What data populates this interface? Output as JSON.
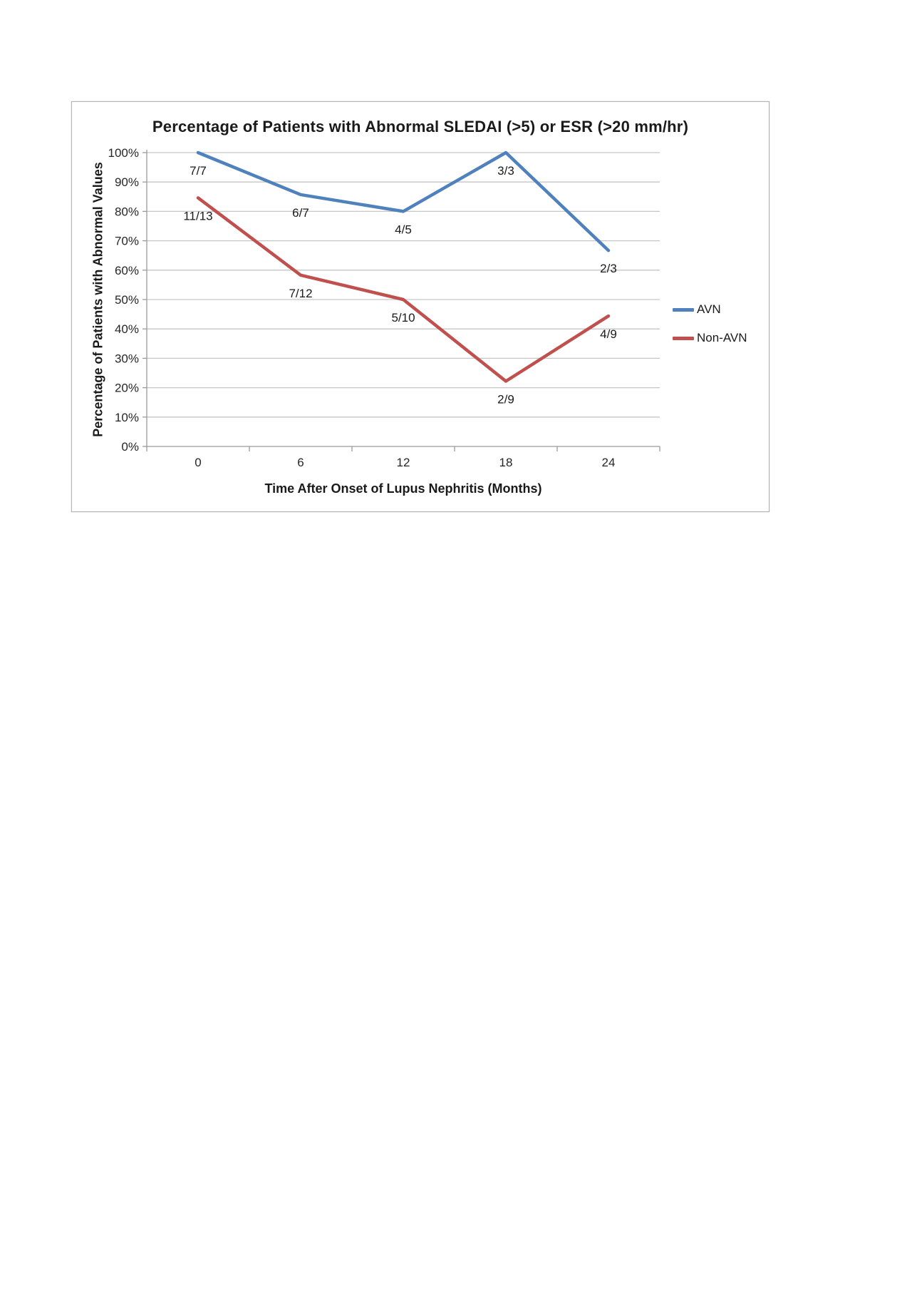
{
  "chart_data": {
    "type": "line",
    "title": "Percentage of Patients with Abnormal SLEDAI (>5) or ESR (>20 mm/hr)",
    "xlabel": "Time After Onset of Lupus Nephritis (Months)",
    "ylabel": "Percentage of Patients with Abnormal Values",
    "x": [
      0,
      6,
      12,
      18,
      24
    ],
    "ylim": [
      0,
      100
    ],
    "ytick_step": 10,
    "ytick_suffix": "%",
    "grid": true,
    "legend_position": "right",
    "series": [
      {
        "name": "AVN",
        "color": "#4f81bd",
        "values": [
          100,
          85.7,
          80,
          100,
          66.7
        ],
        "labels": [
          "7/7",
          "6/7",
          "4/5",
          "3/3",
          "2/3"
        ]
      },
      {
        "name": "Non-AVN",
        "color": "#c0504d",
        "values": [
          84.6,
          58.3,
          50,
          22.2,
          44.4
        ],
        "labels": [
          "11/13",
          "7/12",
          "5/10",
          "2/9",
          "4/9"
        ]
      }
    ],
    "colors": {
      "gridline": "#c6c6c6",
      "axis": "#9a9a9a",
      "text": "#1a1a1a"
    }
  }
}
